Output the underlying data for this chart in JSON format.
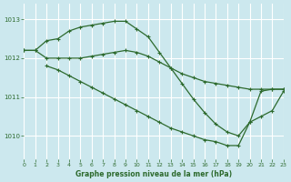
{
  "title": "Graphe pression niveau de la mer (hPa)",
  "bg_color": "#cce8ee",
  "grid_color": "#ffffff",
  "line_color": "#2d6a2d",
  "xlim": [
    0,
    23
  ],
  "ylim_min": 1009.4,
  "ylim_max": 1013.4,
  "yticks": [
    1010,
    1011,
    1012,
    1013
  ],
  "xticks": [
    0,
    1,
    2,
    3,
    4,
    5,
    6,
    7,
    8,
    9,
    10,
    11,
    12,
    13,
    14,
    15,
    16,
    17,
    18,
    19,
    20,
    21,
    22,
    23
  ],
  "series1_x": [
    0,
    1,
    2,
    3,
    4,
    5,
    6,
    7,
    8,
    9,
    10,
    11,
    12,
    13,
    14,
    15,
    16,
    17,
    18,
    19,
    20,
    21,
    22,
    23
  ],
  "series1_y": [
    1012.2,
    1012.2,
    1012.45,
    1012.5,
    1012.7,
    1012.8,
    1012.85,
    1012.9,
    1012.95,
    1012.95,
    1012.75,
    1012.55,
    1012.15,
    1011.75,
    1011.35,
    1010.95,
    1010.6,
    1010.3,
    1010.1,
    1010.0,
    1010.35,
    1011.15,
    1011.2,
    1011.2
  ],
  "series2_x": [
    0,
    1,
    2,
    3,
    4,
    5,
    6,
    7,
    8,
    9,
    10,
    11,
    12,
    13,
    14,
    15,
    16,
    17,
    18,
    19,
    20,
    21,
    22,
    23
  ],
  "series2_y": [
    1012.2,
    1012.2,
    1012.0,
    1012.0,
    1012.0,
    1012.0,
    1012.05,
    1012.1,
    1012.15,
    1012.2,
    1012.15,
    1012.05,
    1011.9,
    1011.75,
    1011.6,
    1011.5,
    1011.4,
    1011.35,
    1011.3,
    1011.25,
    1011.2,
    1011.2,
    1011.2,
    1011.2
  ],
  "series3_x": [
    2,
    3,
    4,
    5,
    6,
    7,
    8,
    9,
    10,
    11,
    12,
    13,
    14,
    15,
    16,
    17,
    18,
    19,
    20,
    21,
    22,
    23
  ],
  "series3_y": [
    1011.8,
    1011.7,
    1011.55,
    1011.4,
    1011.25,
    1011.1,
    1010.95,
    1010.8,
    1010.65,
    1010.5,
    1010.35,
    1010.2,
    1010.1,
    1010.0,
    1009.9,
    1009.85,
    1009.75,
    1009.75,
    1010.35,
    1010.5,
    1010.65,
    1011.15
  ],
  "marker": "+",
  "marker_size": 3.5,
  "line_width": 0.9
}
